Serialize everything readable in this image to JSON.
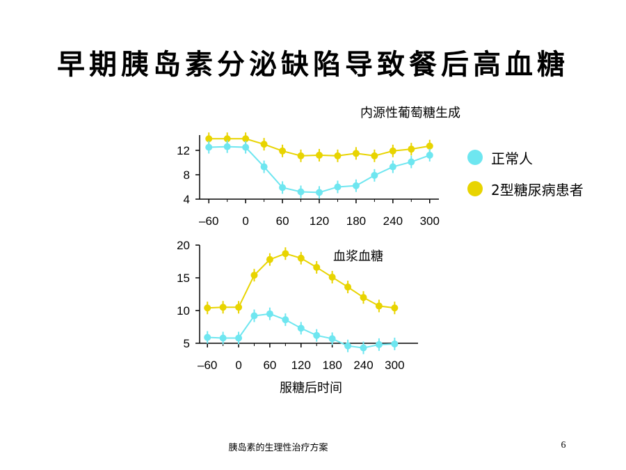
{
  "title": "早期胰岛素分泌缺陷导致餐后高血糖",
  "footer": "胰岛素的生理性治疗方案",
  "page_number": "6",
  "legend": [
    {
      "label": "正常人",
      "color": "#6ee6f0"
    },
    {
      "label": "2型糖尿病患者",
      "color": "#e8d400"
    }
  ],
  "xlabel": "服糖后时间",
  "chart_data": [
    {
      "type": "line",
      "title": "内源性葡萄糖生成",
      "xticks": [
        "–60",
        "0",
        "60",
        "120",
        "180",
        "240",
        "300"
      ],
      "xtick_values": [
        -60,
        0,
        60,
        120,
        180,
        240,
        300
      ],
      "yticks": [
        "4",
        "8",
        "12"
      ],
      "ytick_values": [
        4,
        8,
        12
      ],
      "xlim": [
        -75,
        315
      ],
      "ylim": [
        4,
        14.5
      ],
      "series": [
        {
          "color": "#6ee6f0",
          "x": [
            -60,
            -30,
            0,
            30,
            60,
            90,
            120,
            150,
            180,
            210,
            240,
            270,
            300
          ],
          "values": [
            12.5,
            12.6,
            12.5,
            9.3,
            5.9,
            5.2,
            5.1,
            6.0,
            6.2,
            7.9,
            9.3,
            10.1,
            11.2
          ]
        },
        {
          "color": "#e8d400",
          "x": [
            -60,
            -30,
            0,
            30,
            60,
            90,
            120,
            150,
            180,
            210,
            240,
            270,
            300
          ],
          "values": [
            13.9,
            13.9,
            13.9,
            13.0,
            11.9,
            11.1,
            11.2,
            11.1,
            11.5,
            11.1,
            11.9,
            12.2,
            12.7
          ]
        }
      ]
    },
    {
      "type": "line",
      "title": "血浆血糖",
      "xticks": [
        "–60",
        "0",
        "60",
        "120",
        "180",
        "240",
        "300"
      ],
      "xtick_values": [
        -60,
        0,
        60,
        120,
        180,
        240,
        300
      ],
      "yticks": [
        "5",
        "10",
        "15",
        "20"
      ],
      "ytick_values": [
        5,
        10,
        15,
        20
      ],
      "xlim": [
        -75,
        345
      ],
      "ylim": [
        5,
        20
      ],
      "series": [
        {
          "color": "#6ee6f0",
          "x": [
            -60,
            -30,
            0,
            30,
            60,
            90,
            120,
            150,
            180,
            210,
            240,
            270,
            300
          ],
          "values": [
            5.9,
            5.8,
            5.8,
            9.2,
            9.5,
            8.6,
            7.3,
            6.2,
            5.7,
            4.6,
            4.3,
            4.8,
            4.9
          ]
        },
        {
          "color": "#e8d400",
          "x": [
            -60,
            -30,
            0,
            30,
            60,
            90,
            120,
            150,
            180,
            210,
            240,
            270,
            300
          ],
          "values": [
            10.4,
            10.5,
            10.5,
            15.4,
            17.8,
            18.7,
            18.0,
            16.6,
            15.1,
            13.6,
            12.0,
            10.7,
            10.4
          ]
        }
      ]
    }
  ]
}
